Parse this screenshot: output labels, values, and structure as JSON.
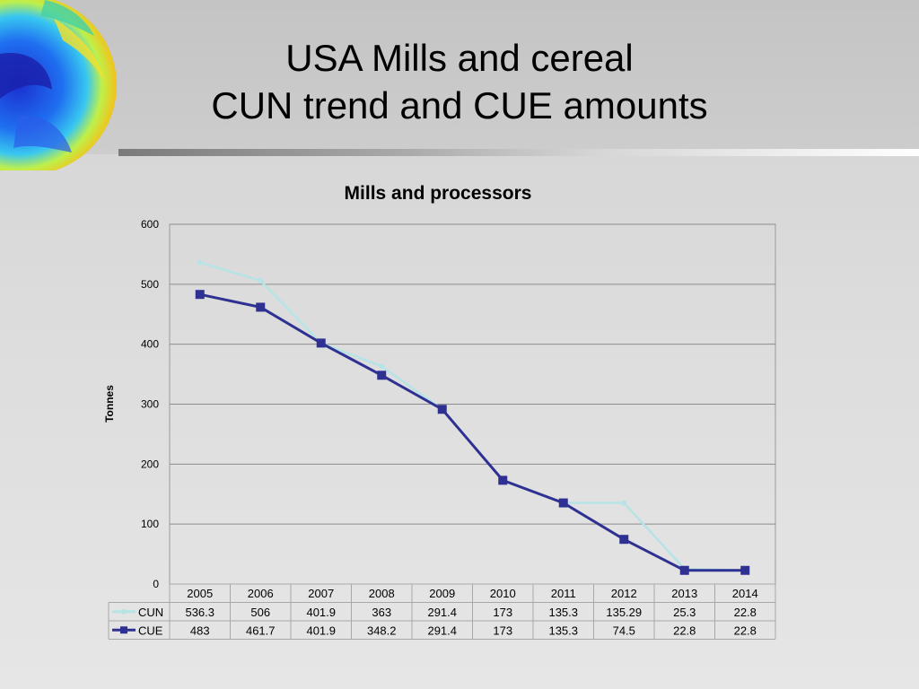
{
  "slide": {
    "title_line1": "USA Mills and cereal",
    "title_line2": "CUN trend and CUE amounts"
  },
  "chart_data": {
    "type": "line",
    "title": "Mills and processors",
    "ylabel": "Tonnes",
    "xlabel": "",
    "ylim": [
      0,
      600
    ],
    "yticks": [
      0,
      100,
      200,
      300,
      400,
      500,
      600
    ],
    "grid": true,
    "legend": "data-table",
    "categories": [
      "2005",
      "2006",
      "2007",
      "2008",
      "2009",
      "2010",
      "2011",
      "2012",
      "2013",
      "2014"
    ],
    "series": [
      {
        "name": "CUN",
        "color": "#b6e4e6",
        "marker": "circle",
        "values": [
          536.3,
          506,
          401.9,
          363,
          291.4,
          173,
          135.3,
          135.29,
          25.3,
          22.8
        ],
        "labels": [
          "536.3",
          "506",
          "401.9",
          "363",
          "291.4",
          "173",
          "135.3",
          "135.29",
          "25.3",
          "22.8"
        ]
      },
      {
        "name": "CUE",
        "color": "#2e3192",
        "marker": "square",
        "values": [
          483,
          461.7,
          401.9,
          348.2,
          291.4,
          173,
          135.3,
          74.5,
          22.8,
          22.8
        ],
        "labels": [
          "483",
          "461.7",
          "401.9",
          "348.2",
          "291.4",
          "173",
          "135.3",
          "74.5",
          "22.8",
          "22.8"
        ]
      }
    ]
  }
}
